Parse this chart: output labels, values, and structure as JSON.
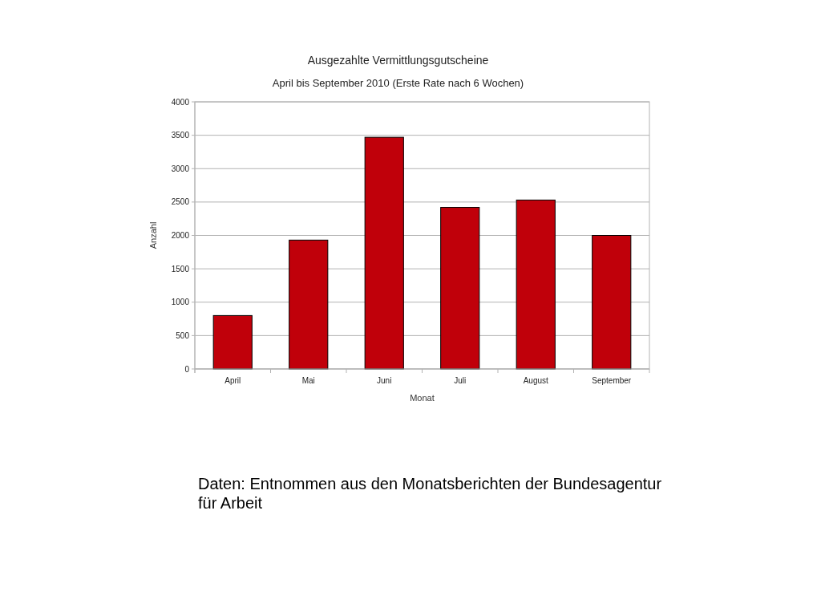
{
  "chart_data": {
    "type": "bar",
    "title": "Ausgezahlte Vermittlungsgutscheine",
    "subtitle": "April bis September 2010 (Erste Rate nach 6 Wochen)",
    "xlabel": "Monat",
    "ylabel": "Anzahl",
    "categories": [
      "April",
      "Mai",
      "Juni",
      "Juli",
      "August",
      "September"
    ],
    "values": [
      800,
      1930,
      3470,
      2420,
      2530,
      2000
    ],
    "color": "#c0000a",
    "ylim": [
      0,
      4000
    ],
    "yticks": [
      0,
      500,
      1000,
      1500,
      2000,
      2500,
      3000,
      3500,
      4000
    ],
    "grid": "y",
    "annotations": [
      "Daten: Entnommen aus den Monatsberichten der Bundesagentur für Arbeit"
    ]
  }
}
